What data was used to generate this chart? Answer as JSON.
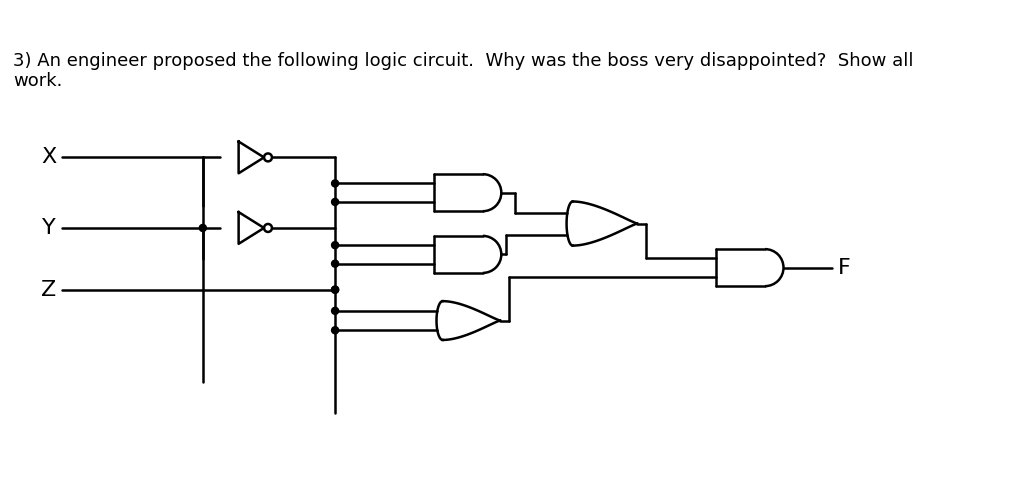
{
  "title_text": "3) An engineer proposed the following logic circuit.  Why was the boss very disappointed?  Show all\nwork.",
  "bg_color": "#ffffff",
  "line_color": "#000000",
  "line_width": 1.8,
  "input_labels": [
    "X",
    "Y",
    "Z"
  ],
  "output_label": "F",
  "font_size_label": 16,
  "font_size_title": 13
}
